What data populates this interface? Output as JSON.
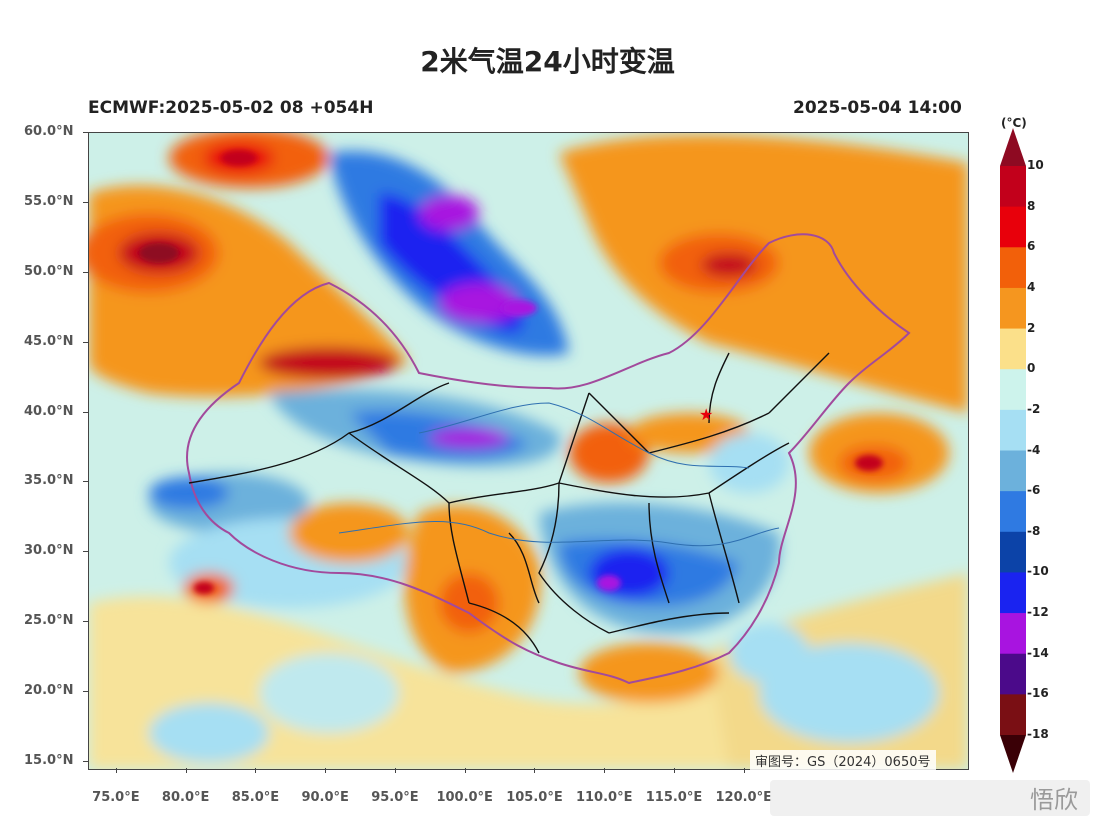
{
  "title": "2米气温24小时变温",
  "model_run": "ECMWF:2025-05-02 08 +054H",
  "valid_time": "2025-05-04 14:00",
  "latitudes": [
    {
      "label": "60.0°N",
      "value": 60
    },
    {
      "label": "55.0°N",
      "value": 55
    },
    {
      "label": "50.0°N",
      "value": 50
    },
    {
      "label": "45.0°N",
      "value": 45
    },
    {
      "label": "40.0°N",
      "value": 40
    },
    {
      "label": "35.0°N",
      "value": 35
    },
    {
      "label": "30.0°N",
      "value": 30
    },
    {
      "label": "25.0°N",
      "value": 25
    },
    {
      "label": "20.0°N",
      "value": 20
    },
    {
      "label": "15.0°N",
      "value": 15
    }
  ],
  "longitudes": [
    {
      "label": "75.0°E",
      "value": 75
    },
    {
      "label": "80.0°E",
      "value": 80
    },
    {
      "label": "85.0°E",
      "value": 85
    },
    {
      "label": "90.0°E",
      "value": 90
    },
    {
      "label": "95.0°E",
      "value": 95
    },
    {
      "label": "100.0°E",
      "value": 100
    },
    {
      "label": "105.0°E",
      "value": 105
    },
    {
      "label": "110.0°E",
      "value": 110
    },
    {
      "label": "115.0°E",
      "value": 115
    },
    {
      "label": "120.0°E",
      "value": 120
    }
  ],
  "extent": {
    "lon_min": 73,
    "lon_max": 136,
    "lat_min": 14.5,
    "lat_max": 60
  },
  "colorbar": {
    "unit": "(°C)",
    "levels": [
      "10",
      "8",
      "6",
      "4",
      "2",
      "0",
      "-2",
      "-4",
      "-6",
      "-8",
      "-10",
      "-12",
      "-14",
      "-16",
      "-18"
    ],
    "colors": [
      "#8e0a22",
      "#c2001b",
      "#e8000b",
      "#f2600a",
      "#f5961f",
      "#fbe08a",
      "#cdf3ec",
      "#a6dff3",
      "#6cb1dc",
      "#2f7ae2",
      "#0c43a8",
      "#1a23f0",
      "#a814e0",
      "#4b0a8a",
      "#7a0f14",
      "#3a0006"
    ]
  },
  "capital_marker": "star",
  "credit_text": "审图号：GS（2024）0650号",
  "watermark_text": "悟欣"
}
